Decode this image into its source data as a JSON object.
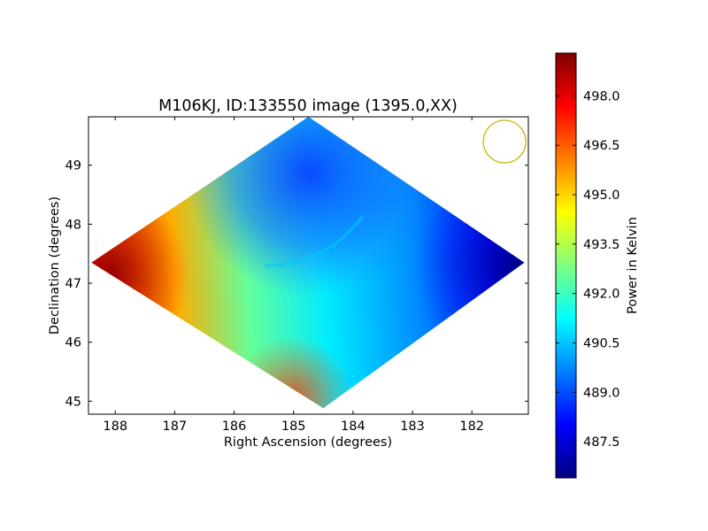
{
  "chart_data": [
    {
      "type": "heatmap",
      "title": "M106KJ, ID:133550 image (1395.0,XX)",
      "xlabel": "Right Ascension (degrees)",
      "ylabel": "Declination (degrees)",
      "xlim": [
        188.45,
        181.05
      ],
      "ylim": [
        44.78,
        49.82
      ],
      "x_reversed": true,
      "grid": false,
      "xticks": [
        188,
        187,
        186,
        185,
        184,
        183,
        182
      ],
      "xtick_labels": [
        "188",
        "187",
        "186",
        "185",
        "184",
        "183",
        "182"
      ],
      "yticks": [
        45,
        46,
        47,
        48,
        49
      ],
      "ytick_labels": [
        "45",
        "46",
        "47",
        "48",
        "49"
      ],
      "colormap": "jet",
      "colors": [
        "#00007f",
        "#0000ff",
        "#007fff",
        "#00ffff",
        "#7fff7f",
        "#ffff00",
        "#ff7f00",
        "#ff0000",
        "#7f0000"
      ],
      "colorbar": {
        "label": "Power in Kelvin",
        "vmin": 486.4,
        "vmax": 499.3,
        "ticks": [
          487.5,
          489.0,
          490.5,
          492.0,
          493.5,
          495.0,
          496.5,
          498.0
        ],
        "tick_labels": [
          "487.5",
          "489.0",
          "490.5",
          "492.0",
          "493.5",
          "495.0",
          "496.5",
          "498.0"
        ]
      },
      "footprint_corners_deg": [
        [
          184.75,
          49.82
        ],
        [
          188.4,
          47.35
        ],
        [
          184.5,
          44.88
        ],
        [
          181.12,
          47.35
        ]
      ],
      "beam_circle": {
        "ra": 181.45,
        "dec": 49.4,
        "color": "#c8b400"
      },
      "surface": {
        "gradient_west_to_east": [
          [
            188.3,
            498.5
          ],
          [
            187.0,
            495.5
          ],
          [
            185.8,
            492.5
          ],
          [
            184.5,
            491.0
          ],
          [
            183.0,
            489.8
          ],
          [
            181.5,
            488.0
          ]
        ],
        "notes": "hottest at lower-left (east) corner, coolest at right (west) corner; cool blue lobe toward top centre"
      }
    }
  ]
}
